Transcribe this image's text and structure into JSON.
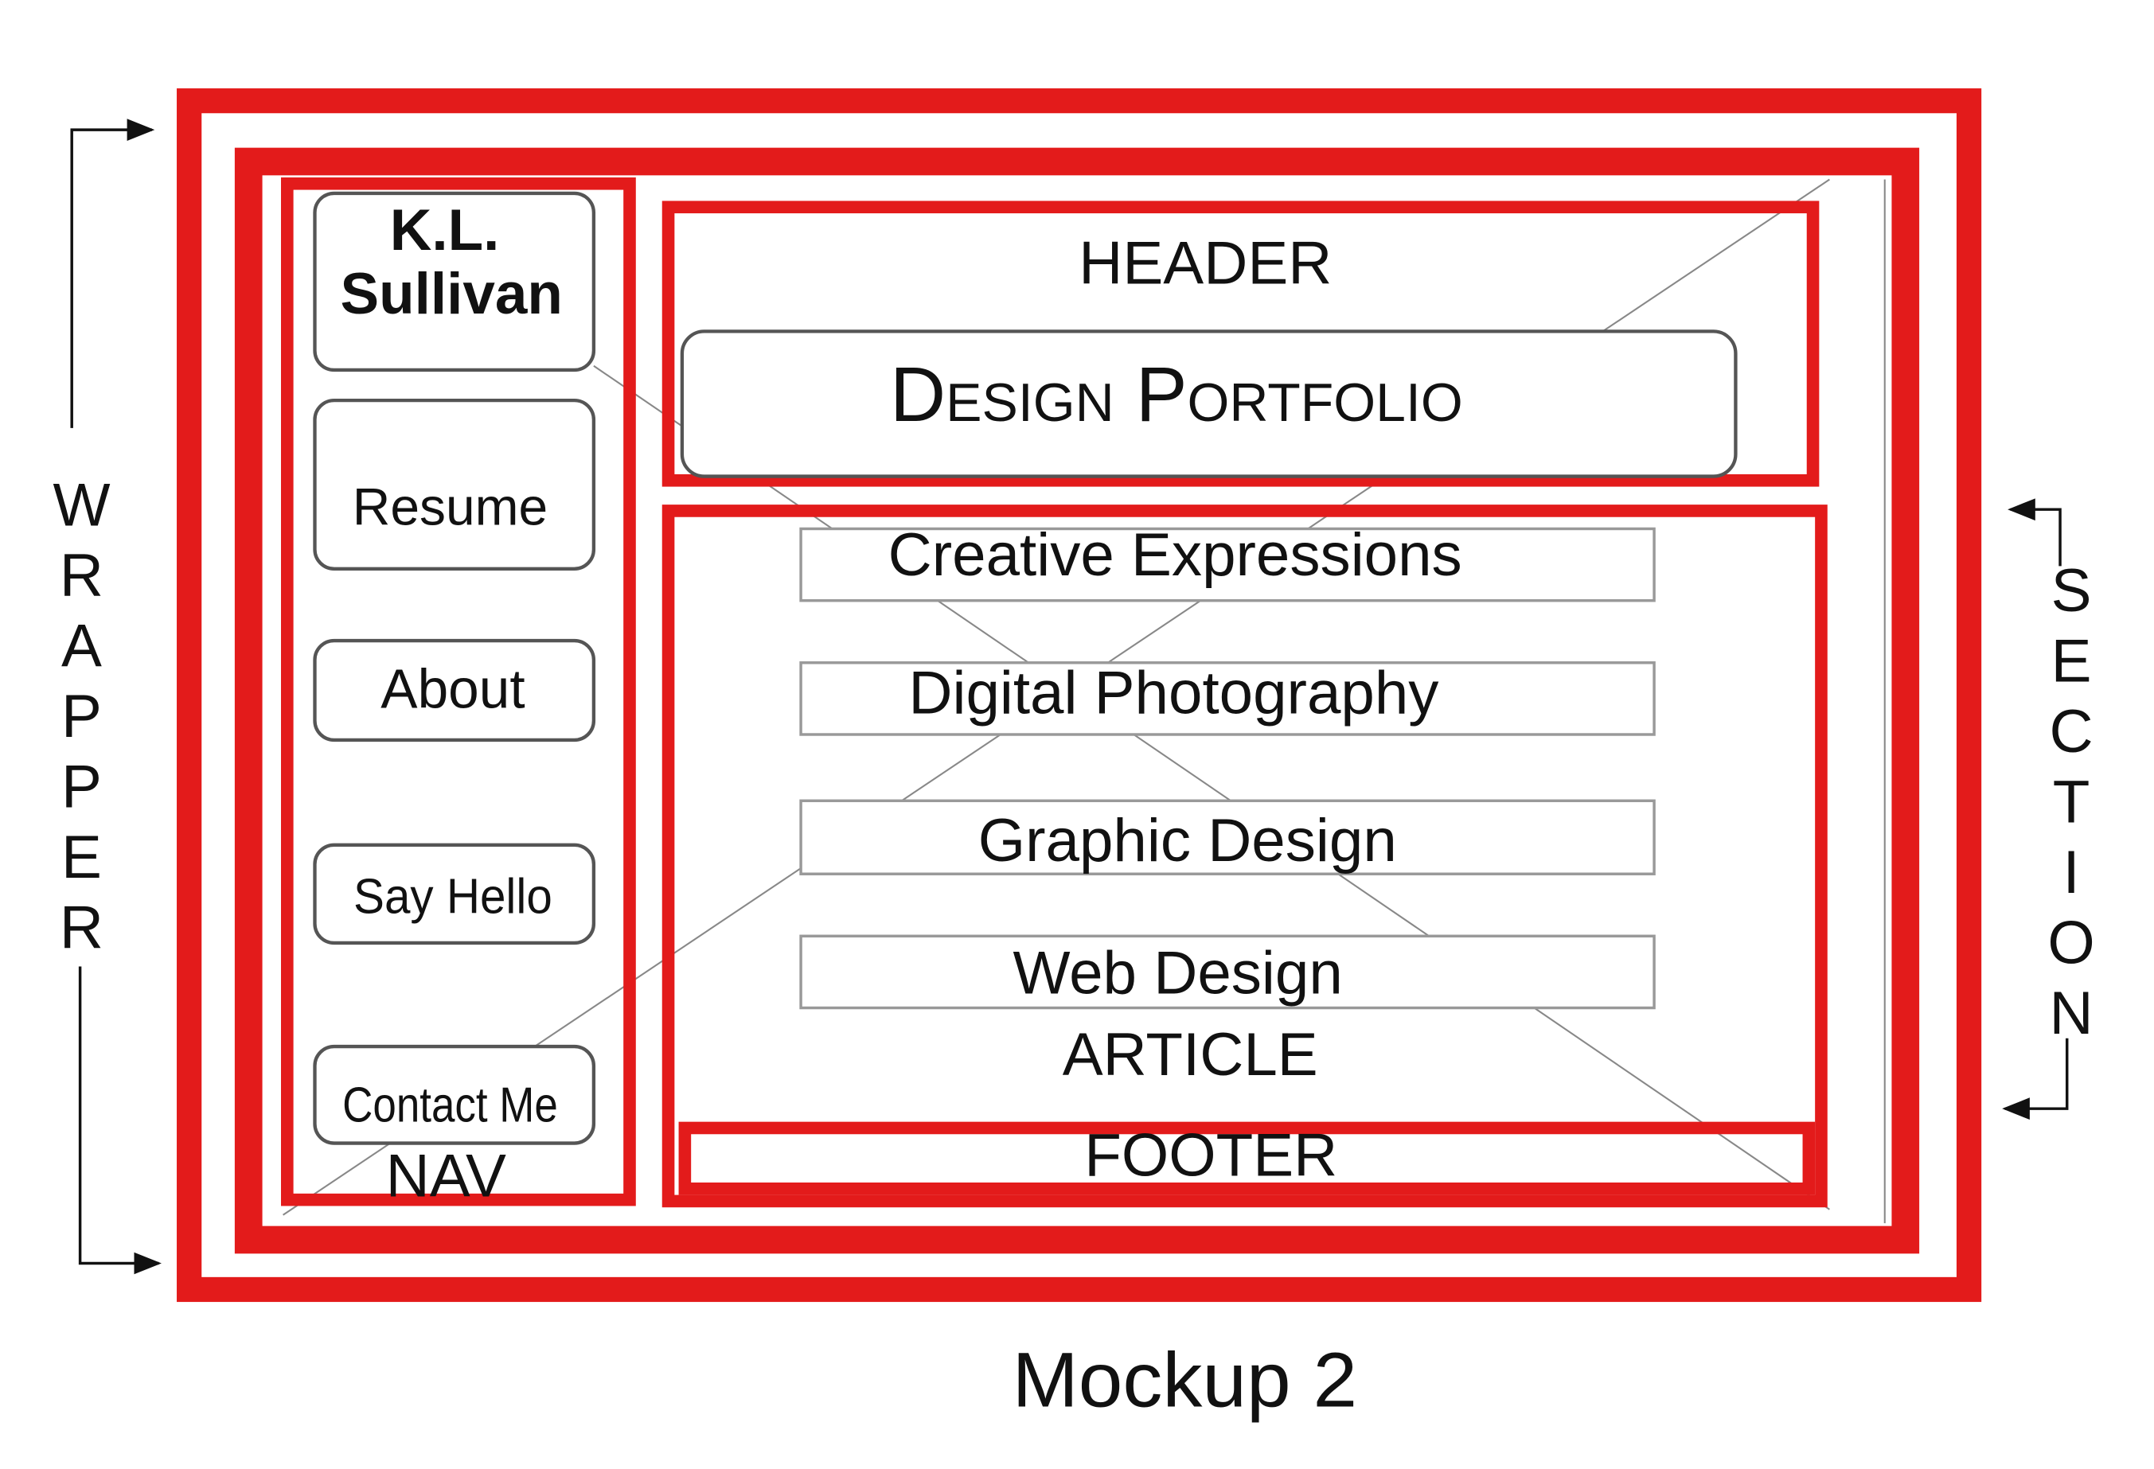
{
  "wrapper": {
    "label": "WRAPPER"
  },
  "section": {
    "label": "SECTION"
  },
  "nav": {
    "brand": [
      "K.L.",
      "Sullivan"
    ],
    "items": [
      "Resume",
      "About",
      "Say Hello",
      "Contact Me"
    ],
    "label": "NAV"
  },
  "header": {
    "label": "HEADER",
    "title": "Design Portfolio"
  },
  "article": {
    "items": [
      "Creative Expressions",
      "Digital Photography",
      "Graphic Design",
      "Web Design"
    ],
    "label": "ARTICLE"
  },
  "footer": {
    "label": "FOOTER"
  },
  "caption": "Mockup 2"
}
